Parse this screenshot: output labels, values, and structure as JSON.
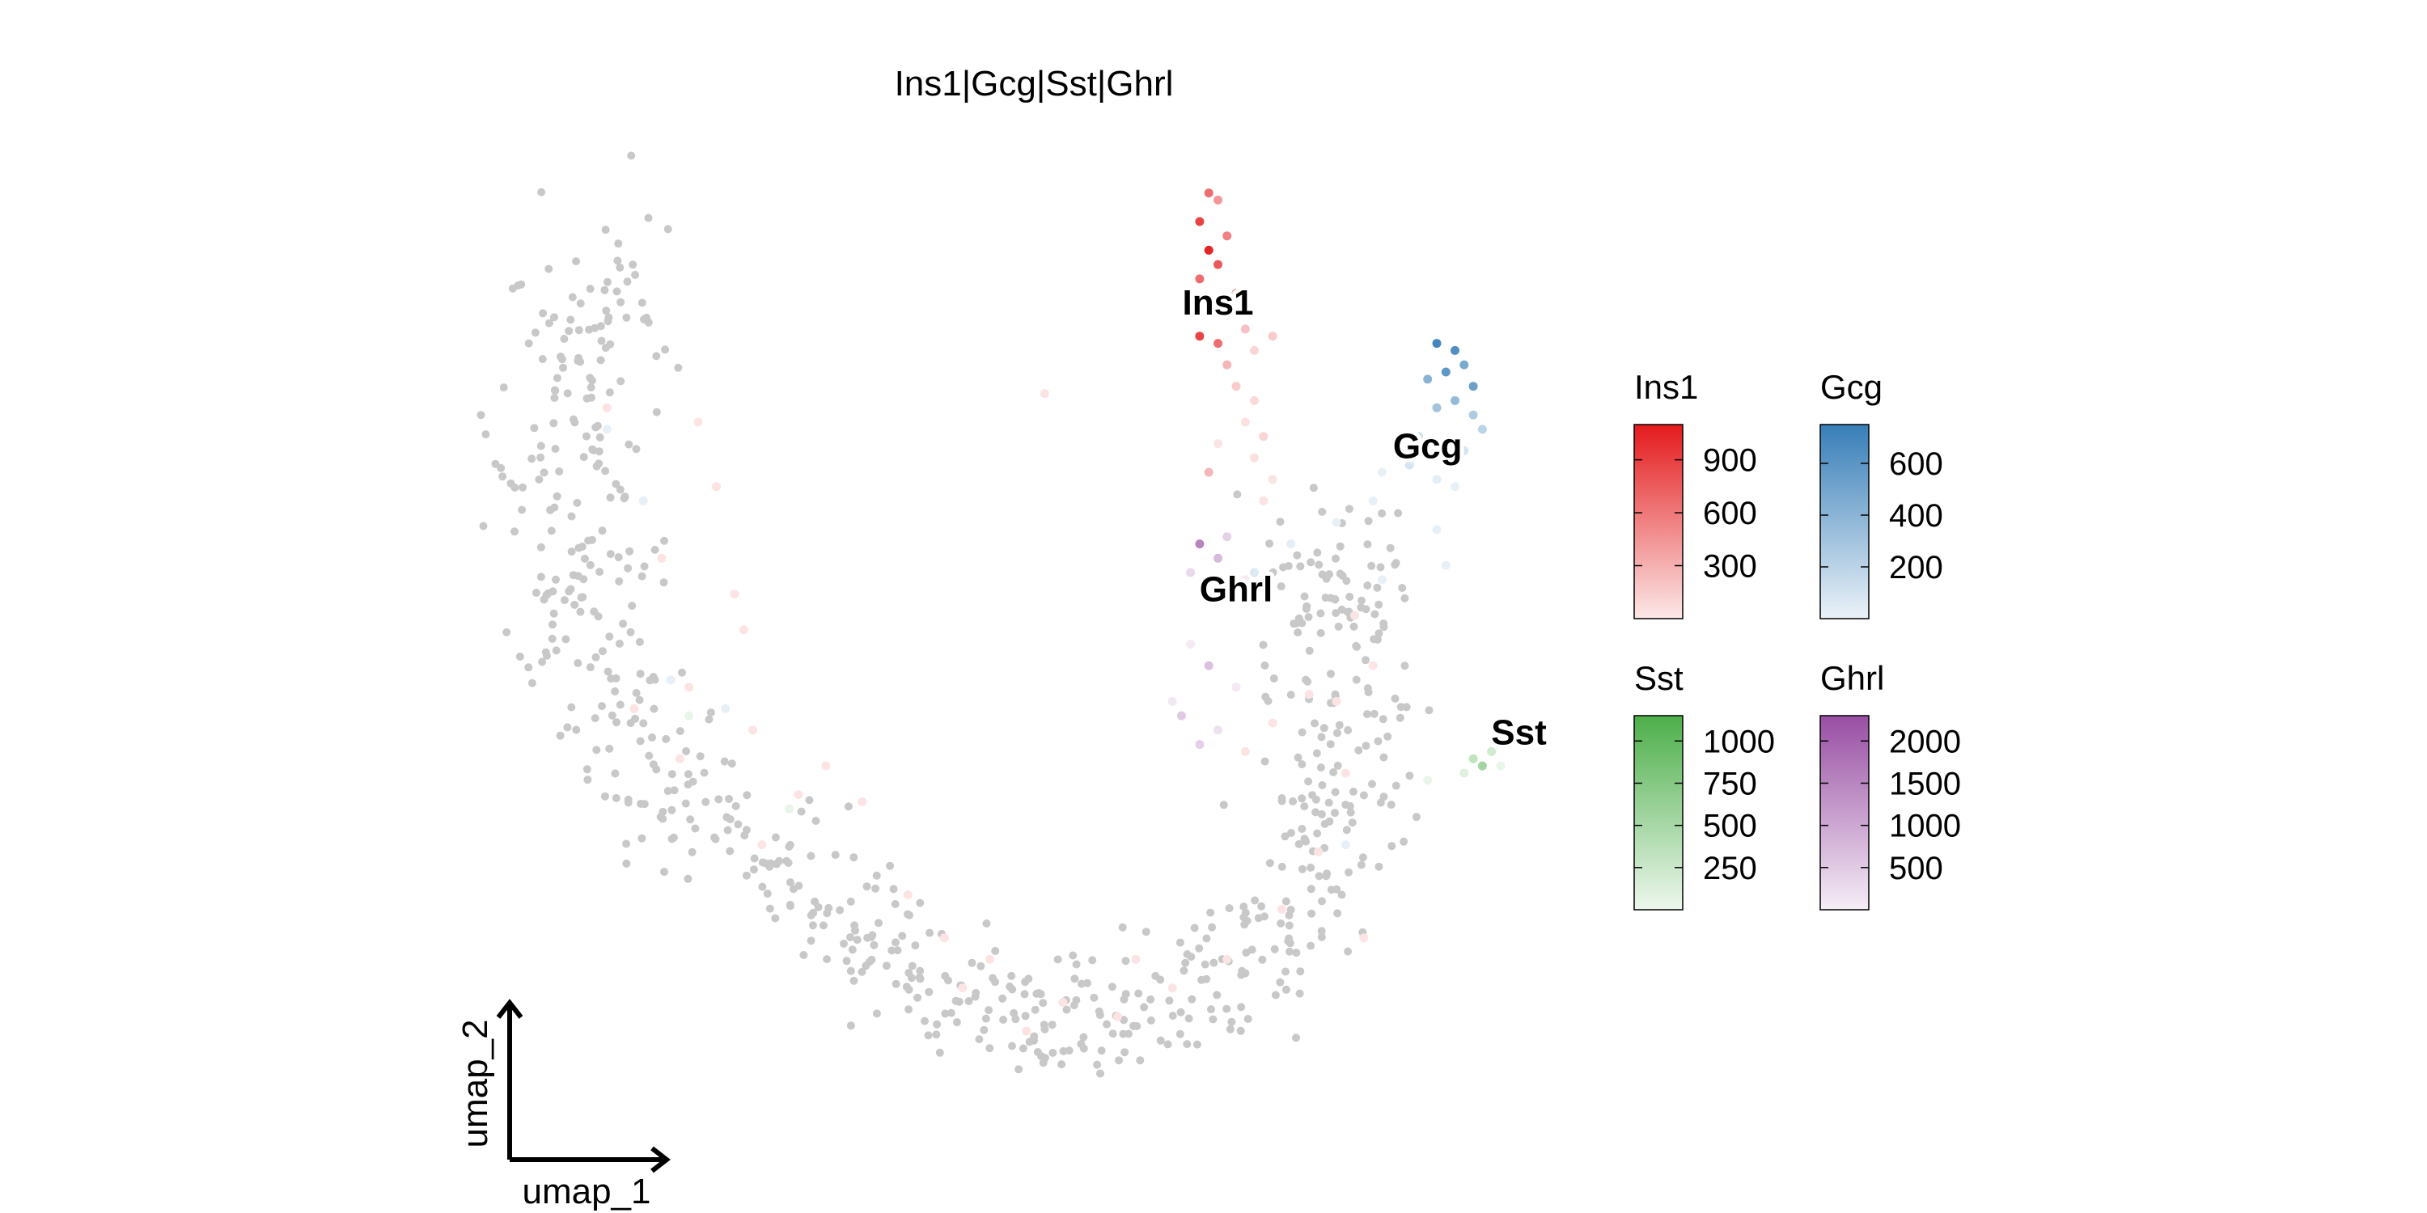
{
  "chart_data": {
    "type": "scatter",
    "title": "Ins1|Gcg|Sst|Ghrl",
    "xlabel": "umap_1",
    "ylabel": "umap_2",
    "background_point_color": "#c8c8c8",
    "cluster_labels": [
      {
        "text": "Ins1",
        "x": 4.5,
        "y": 11.3
      },
      {
        "text": "Gcg",
        "x": 6.8,
        "y": 9.3
      },
      {
        "text": "Ghrl",
        "x": 4.7,
        "y": 7.3
      },
      {
        "text": "Sst",
        "x": 7.8,
        "y": 5.3
      }
    ],
    "legends": [
      {
        "feature": "Ins1",
        "color": "#e41a1c",
        "min": 0,
        "max": 1100,
        "ticks": [
          300,
          600,
          900
        ]
      },
      {
        "feature": "Gcg",
        "color": "#377eb8",
        "min": 0,
        "max": 750,
        "ticks": [
          200,
          400,
          600
        ]
      },
      {
        "feature": "Sst",
        "color": "#4daf4a",
        "min": 0,
        "max": 1150,
        "ticks": [
          250,
          500,
          750,
          1000
        ]
      },
      {
        "feature": "Ghrl",
        "color": "#984ea3",
        "min": 0,
        "max": 2300,
        "ticks": [
          500,
          1000,
          1500,
          2000
        ]
      }
    ],
    "series": [
      {
        "name": "Ins1",
        "color": "#e41a1c",
        "points": [
          [
            4.4,
            13.0,
            700
          ],
          [
            4.5,
            12.9,
            500
          ],
          [
            4.3,
            12.6,
            900
          ],
          [
            4.6,
            12.4,
            600
          ],
          [
            4.4,
            12.2,
            1050
          ],
          [
            4.5,
            12.0,
            800
          ],
          [
            4.3,
            11.8,
            700
          ],
          [
            4.7,
            11.6,
            500
          ],
          [
            4.4,
            11.5,
            400
          ],
          [
            4.6,
            11.3,
            600
          ],
          [
            4.3,
            11.0,
            900
          ],
          [
            4.5,
            10.9,
            700
          ],
          [
            4.8,
            11.1,
            300
          ],
          [
            4.9,
            10.8,
            200
          ],
          [
            5.1,
            11.0,
            250
          ],
          [
            4.6,
            10.6,
            350
          ],
          [
            4.7,
            10.3,
            250
          ],
          [
            4.9,
            10.1,
            180
          ],
          [
            4.8,
            9.8,
            150
          ],
          [
            5.0,
            9.6,
            200
          ],
          [
            4.5,
            9.5,
            120
          ],
          [
            4.9,
            9.3,
            150
          ],
          [
            5.1,
            9.0,
            100
          ],
          [
            4.4,
            9.1,
            350
          ],
          [
            5.0,
            8.7,
            90
          ],
          [
            2.6,
            10.2,
            80
          ],
          [
            -1.2,
            9.8,
            60
          ],
          [
            -1.0,
            8.9,
            70
          ],
          [
            -2.2,
            10.0,
            50
          ],
          [
            -1.6,
            7.9,
            60
          ],
          [
            -0.7,
            6.9,
            50
          ],
          [
            -1.3,
            6.1,
            80
          ],
          [
            -0.6,
            5.5,
            60
          ],
          [
            -1.9,
            5.8,
            50
          ],
          [
            0.2,
            5.0,
            70
          ],
          [
            -0.1,
            4.6,
            60
          ],
          [
            1.1,
            3.2,
            80
          ],
          [
            1.5,
            2.6,
            100
          ],
          [
            2.0,
            2.3,
            60
          ],
          [
            2.8,
            1.7,
            70
          ],
          [
            1.7,
            1.9,
            120
          ],
          [
            2.4,
            1.3,
            90
          ],
          [
            3.4,
            1.5,
            60
          ],
          [
            4.0,
            1.9,
            80
          ],
          [
            4.6,
            2.3,
            70
          ],
          [
            5.2,
            3.0,
            90
          ],
          [
            5.6,
            3.8,
            60
          ],
          [
            5.9,
            4.9,
            100
          ],
          [
            5.8,
            5.9,
            80
          ],
          [
            6.2,
            6.4,
            60
          ],
          [
            6.0,
            7.1,
            70
          ],
          [
            5.5,
            6.0,
            90
          ],
          [
            5.1,
            5.6,
            60
          ],
          [
            4.8,
            5.2,
            80
          ],
          [
            6.1,
            2.6,
            70
          ],
          [
            3.6,
            2.3,
            50
          ],
          [
            -0.5,
            3.9,
            60
          ],
          [
            0.6,
            4.5,
            70
          ],
          [
            -1.4,
            5.1,
            50
          ],
          [
            -0.8,
            7.4,
            60
          ]
        ]
      },
      {
        "name": "Gcg",
        "color": "#377eb8",
        "points": [
          [
            6.9,
            10.9,
            700
          ],
          [
            7.1,
            10.8,
            650
          ],
          [
            7.2,
            10.6,
            500
          ],
          [
            7.0,
            10.5,
            600
          ],
          [
            6.8,
            10.4,
            450
          ],
          [
            7.3,
            10.3,
            550
          ],
          [
            7.1,
            10.1,
            400
          ],
          [
            6.9,
            10.0,
            350
          ],
          [
            7.3,
            9.9,
            300
          ],
          [
            7.4,
            9.7,
            250
          ],
          [
            6.7,
            9.6,
            200
          ],
          [
            7.0,
            9.5,
            300
          ],
          [
            7.2,
            9.4,
            150
          ],
          [
            6.6,
            9.2,
            150
          ],
          [
            6.9,
            9.0,
            100
          ],
          [
            7.1,
            8.9,
            80
          ],
          [
            6.5,
            9.4,
            120
          ],
          [
            6.3,
            9.1,
            70
          ],
          [
            6.2,
            8.7,
            80
          ],
          [
            5.8,
            8.4,
            60
          ],
          [
            6.9,
            8.3,
            60
          ],
          [
            5.3,
            8.1,
            100
          ],
          [
            4.9,
            7.7,
            130
          ],
          [
            -2.2,
            9.7,
            90
          ],
          [
            -1.8,
            8.7,
            70
          ],
          [
            -1.5,
            6.2,
            60
          ],
          [
            -0.9,
            5.8,
            50
          ],
          [
            5.9,
            3.9,
            60
          ],
          [
            6.3,
            7.6,
            70
          ],
          [
            7.0,
            7.8,
            60
          ]
        ]
      },
      {
        "name": "Sst",
        "color": "#4daf4a",
        "points": [
          [
            7.3,
            5.1,
            400
          ],
          [
            7.4,
            5.0,
            600
          ],
          [
            7.5,
            5.2,
            300
          ],
          [
            7.2,
            4.9,
            200
          ],
          [
            7.6,
            5.0,
            150
          ],
          [
            -0.2,
            4.4,
            100
          ],
          [
            -1.3,
            5.7,
            70
          ],
          [
            6.8,
            4.8,
            80
          ]
        ]
      },
      {
        "name": "Ghrl",
        "color": "#984ea3",
        "points": [
          [
            4.3,
            8.1,
            1600
          ],
          [
            4.5,
            7.9,
            900
          ],
          [
            4.6,
            8.2,
            600
          ],
          [
            4.2,
            7.7,
            500
          ],
          [
            4.4,
            6.4,
            800
          ],
          [
            4.1,
            5.7,
            700
          ],
          [
            4.3,
            5.3,
            600
          ],
          [
            4.5,
            5.5,
            400
          ],
          [
            4.0,
            5.9,
            300
          ],
          [
            4.7,
            6.1,
            200
          ],
          [
            4.2,
            6.7,
            250
          ],
          [
            4.8,
            7.6,
            150
          ]
        ]
      }
    ]
  }
}
